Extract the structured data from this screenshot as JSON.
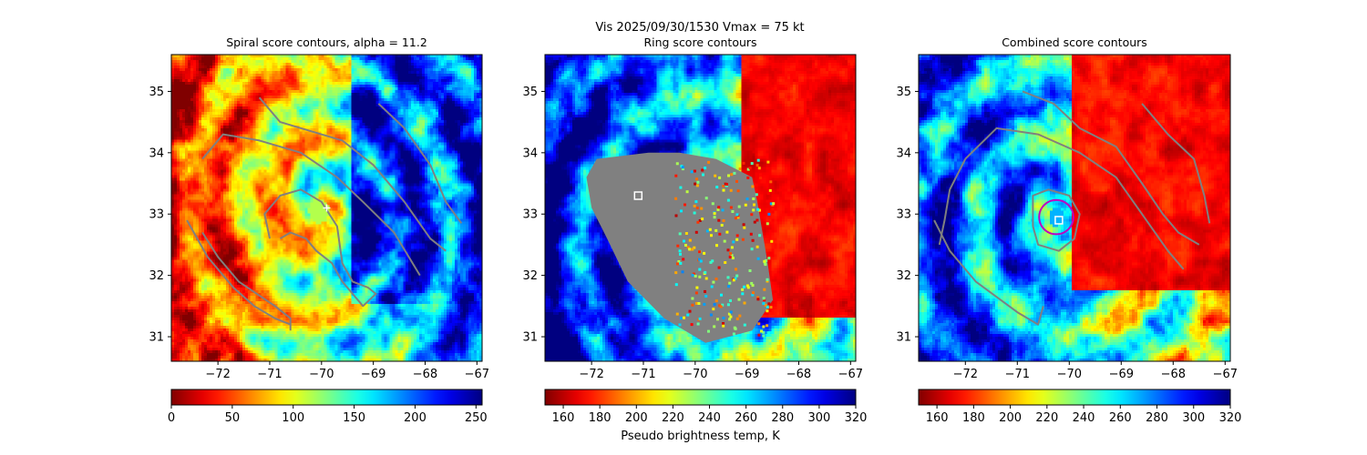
{
  "figure": {
    "suptitle": "Vis  2025/09/30/1530    Vmax = 75 kt",
    "colors": {
      "contour": "#808080",
      "marker_white": "#ffffff",
      "circle_magenta": "#c000c0",
      "mask_gray": "#808080"
    }
  },
  "chart_data": [
    {
      "type": "heatmap",
      "title": "Spiral score contours, alpha = 11.2",
      "colormap": "jet_r",
      "xlim": [
        -72.9,
        -66.9
      ],
      "ylim": [
        30.6,
        35.6
      ],
      "xticks": [
        -72,
        -71,
        -70,
        -69,
        -68,
        -67
      ],
      "xtick_labels": [
        "−72",
        "−71",
        "−70",
        "−69",
        "−68",
        "−67"
      ],
      "yticks": [
        31,
        32,
        33,
        34,
        35
      ],
      "ytick_labels": [
        "31",
        "32",
        "33",
        "34",
        "35"
      ],
      "colorbar": {
        "min": 0,
        "max": 255,
        "ticks": [
          0,
          50,
          100,
          150,
          200,
          250
        ],
        "tick_labels": [
          "0",
          "50",
          "100",
          "150",
          "200",
          "250"
        ],
        "label": ""
      },
      "center": [
        -70.05,
        33.05
      ],
      "markers": [
        {
          "type": "plus",
          "lon": -69.9,
          "lat": 33.1,
          "color": "#ffffff"
        }
      ],
      "contours": [
        [
          [
            -72.6,
            32.9
          ],
          [
            -72.2,
            32.3
          ],
          [
            -71.7,
            31.8
          ],
          [
            -71.3,
            31.5
          ],
          [
            -70.9,
            31.3
          ],
          [
            -70.6,
            31.2
          ]
        ],
        [
          [
            -70.6,
            31.1
          ],
          [
            -70.6,
            31.3
          ],
          [
            -70.9,
            31.5
          ],
          [
            -71.6,
            31.9
          ],
          [
            -72.0,
            32.3
          ],
          [
            -72.3,
            32.7
          ]
        ],
        [
          [
            -71.0,
            32.6
          ],
          [
            -71.1,
            33.0
          ],
          [
            -70.8,
            33.3
          ],
          [
            -70.4,
            33.4
          ],
          [
            -70.0,
            33.2
          ],
          [
            -69.7,
            32.8
          ],
          [
            -69.6,
            32.2
          ],
          [
            -69.4,
            31.9
          ],
          [
            -69.1,
            31.8
          ],
          [
            -68.95,
            31.7
          ],
          [
            -69.2,
            31.5
          ],
          [
            -69.4,
            31.7
          ],
          [
            -69.6,
            31.9
          ],
          [
            -69.8,
            32.2
          ],
          [
            -70.1,
            32.4
          ],
          [
            -70.3,
            32.6
          ],
          [
            -70.6,
            32.7
          ],
          [
            -70.8,
            32.6
          ]
        ],
        [
          [
            -72.3,
            33.9
          ],
          [
            -71.9,
            34.3
          ],
          [
            -71.2,
            34.2
          ],
          [
            -70.4,
            34.0
          ],
          [
            -69.7,
            33.6
          ],
          [
            -69.2,
            33.2
          ],
          [
            -68.6,
            32.7
          ],
          [
            -68.1,
            32.0
          ]
        ],
        [
          [
            -71.2,
            34.9
          ],
          [
            -70.8,
            34.5
          ],
          [
            -69.6,
            34.2
          ],
          [
            -69.0,
            33.8
          ],
          [
            -68.4,
            33.2
          ],
          [
            -67.9,
            32.6
          ],
          [
            -67.6,
            32.4
          ]
        ],
        [
          [
            -68.9,
            34.8
          ],
          [
            -68.4,
            34.4
          ],
          [
            -67.9,
            33.8
          ],
          [
            -67.6,
            33.2
          ],
          [
            -67.3,
            32.85
          ]
        ]
      ]
    },
    {
      "type": "heatmap",
      "title": "Ring score contours",
      "colormap": "jet_r",
      "xlim": [
        -72.9,
        -66.9
      ],
      "ylim": [
        30.6,
        35.6
      ],
      "xticks": [
        -72,
        -71,
        -70,
        -69,
        -68,
        -67
      ],
      "xtick_labels": [
        "−72",
        "−71",
        "−70",
        "−69",
        "−68",
        "−67"
      ],
      "yticks": [
        31,
        32,
        33,
        34,
        35
      ],
      "ytick_labels": [
        "31",
        "32",
        "33",
        "34",
        "35"
      ],
      "colorbar": {
        "min": 150,
        "max": 320,
        "ticks": [
          160,
          180,
          200,
          220,
          240,
          260,
          280,
          300,
          320
        ],
        "tick_labels": [
          "160",
          "180",
          "200",
          "220",
          "240",
          "260",
          "280",
          "300",
          "320"
        ],
        "label": "Pseudo brightness temp, K"
      },
      "center": [
        -69.4,
        32.5
      ],
      "markers": [
        {
          "type": "square",
          "lon": -71.1,
          "lat": 33.3,
          "color": "#ffffff"
        }
      ],
      "mask_polygon": [
        [
          -71.9,
          33.9
        ],
        [
          -70.9,
          34.0
        ],
        [
          -70.3,
          34.0
        ],
        [
          -69.6,
          33.9
        ],
        [
          -68.9,
          33.6
        ],
        [
          -68.8,
          33.2
        ],
        [
          -68.7,
          32.7
        ],
        [
          -68.6,
          32.2
        ],
        [
          -68.5,
          31.6
        ],
        [
          -68.9,
          31.1
        ],
        [
          -69.8,
          30.9
        ],
        [
          -70.6,
          31.3
        ],
        [
          -71.3,
          31.9
        ],
        [
          -71.7,
          32.6
        ],
        [
          -72.0,
          33.1
        ],
        [
          -72.1,
          33.6
        ]
      ]
    },
    {
      "type": "heatmap",
      "title": "Combined score contours",
      "colormap": "jet_r",
      "xlim": [
        -72.9,
        -66.9
      ],
      "ylim": [
        30.6,
        35.6
      ],
      "xticks": [
        -72,
        -71,
        -70,
        -69,
        -68,
        -67
      ],
      "xtick_labels": [
        "−72",
        "−71",
        "−70",
        "−69",
        "−68",
        "−67"
      ],
      "yticks": [
        31,
        32,
        33,
        34,
        35
      ],
      "ytick_labels": [
        "31",
        "32",
        "33",
        "34",
        "35"
      ],
      "colorbar": {
        "min": 150,
        "max": 320,
        "ticks": [
          160,
          180,
          200,
          220,
          240,
          260,
          280,
          300,
          320
        ],
        "tick_labels": [
          "160",
          "180",
          "200",
          "220",
          "240",
          "260",
          "280",
          "300",
          "320"
        ],
        "label": ""
      },
      "center": [
        -70.25,
        32.95
      ],
      "markers": [
        {
          "type": "circle",
          "lon": -70.25,
          "lat": 32.95,
          "radius_deg": 0.33,
          "color": "#c000c0"
        },
        {
          "type": "square",
          "lon": -70.2,
          "lat": 32.9,
          "color": "#ffffff"
        }
      ],
      "contours": [
        [
          [
            -70.7,
            32.8
          ],
          [
            -70.7,
            33.3
          ],
          [
            -70.4,
            33.4
          ],
          [
            -70.0,
            33.3
          ],
          [
            -69.8,
            33.0
          ],
          [
            -69.9,
            32.6
          ],
          [
            -70.2,
            32.4
          ],
          [
            -70.6,
            32.5
          ],
          [
            -70.7,
            32.8
          ]
        ],
        [
          [
            -72.0,
            33.9
          ],
          [
            -71.4,
            34.4
          ],
          [
            -70.6,
            34.3
          ],
          [
            -69.8,
            34.0
          ],
          [
            -69.1,
            33.6
          ],
          [
            -68.6,
            33.0
          ],
          [
            -68.1,
            32.4
          ],
          [
            -67.8,
            32.1
          ]
        ],
        [
          [
            -70.9,
            35.0
          ],
          [
            -70.3,
            34.8
          ],
          [
            -69.8,
            34.4
          ],
          [
            -69.1,
            34.1
          ],
          [
            -68.6,
            33.5
          ],
          [
            -68.2,
            33.0
          ],
          [
            -67.9,
            32.7
          ],
          [
            -67.5,
            32.5
          ]
        ],
        [
          [
            -68.6,
            34.8
          ],
          [
            -68.1,
            34.3
          ],
          [
            -67.6,
            33.9
          ],
          [
            -67.4,
            33.3
          ],
          [
            -67.3,
            32.85
          ]
        ],
        [
          [
            -72.6,
            32.9
          ],
          [
            -72.3,
            32.4
          ],
          [
            -71.8,
            31.9
          ],
          [
            -71.0,
            31.4
          ],
          [
            -70.6,
            31.2
          ],
          [
            -70.5,
            31.5
          ]
        ],
        [
          [
            -72.0,
            33.9
          ],
          [
            -72.3,
            33.4
          ],
          [
            -72.4,
            32.9
          ],
          [
            -72.5,
            32.5
          ]
        ]
      ]
    }
  ]
}
